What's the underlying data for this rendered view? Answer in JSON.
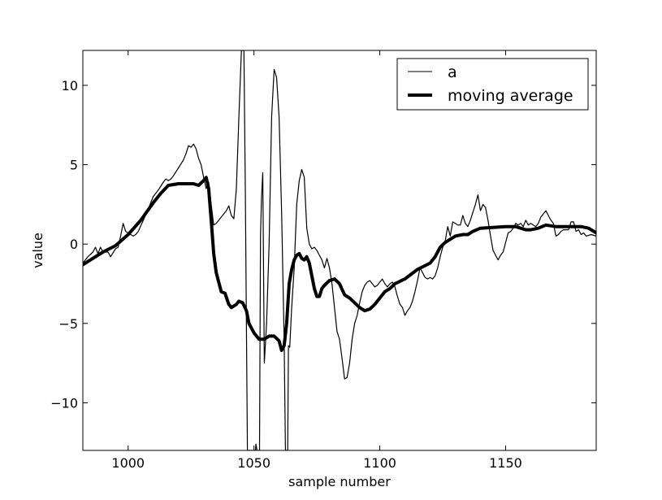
{
  "chart_data": {
    "type": "line",
    "title": "",
    "xlabel": "sample number",
    "ylabel": "value",
    "xlim": [
      982,
      1186
    ],
    "ylim": [
      -13,
      12.2
    ],
    "x_ticks": [
      1000,
      1050,
      1100,
      1150
    ],
    "x_tick_labels": [
      "1000",
      "1050",
      "1100",
      "1150"
    ],
    "y_ticks": [
      10,
      5,
      0,
      -5,
      -10
    ],
    "y_tick_labels": [
      "10",
      "5",
      "0",
      "−5",
      "−10"
    ],
    "grid": false,
    "legend_position": "top-right",
    "series": [
      {
        "name": "a",
        "color": "#000000",
        "style": "thin",
        "points": [
          [
            982,
            -1.2
          ],
          [
            984,
            -0.8
          ],
          [
            986,
            -0.5
          ],
          [
            987,
            -0.2
          ],
          [
            988,
            -0.6
          ],
          [
            989,
            -0.2
          ],
          [
            990,
            -0.5
          ],
          [
            992,
            -0.5
          ],
          [
            993,
            -0.8
          ],
          [
            995,
            -0.3
          ],
          [
            996,
            -0.2
          ],
          [
            997,
            0.5
          ],
          [
            998,
            1.3
          ],
          [
            999,
            0.8
          ],
          [
            1000,
            0.7
          ],
          [
            1001,
            0.6
          ],
          [
            1002,
            0.5
          ],
          [
            1003,
            0.6
          ],
          [
            1004,
            0.8
          ],
          [
            1006,
            1.5
          ],
          [
            1008,
            2.2
          ],
          [
            1010,
            3.0
          ],
          [
            1012,
            3.4
          ],
          [
            1014,
            3.9
          ],
          [
            1015,
            4.1
          ],
          [
            1016,
            4.0
          ],
          [
            1017,
            4.1
          ],
          [
            1018,
            4.3
          ],
          [
            1020,
            4.8
          ],
          [
            1022,
            5.3
          ],
          [
            1023,
            5.7
          ],
          [
            1024,
            6.2
          ],
          [
            1025,
            6.1
          ],
          [
            1026,
            6.3
          ],
          [
            1027,
            6.0
          ],
          [
            1028,
            5.4
          ],
          [
            1029,
            5.0
          ],
          [
            1030,
            4.2
          ],
          [
            1031,
            3.5
          ],
          [
            1032,
            3.9
          ],
          [
            1033,
            2.5
          ],
          [
            1034,
            1.2
          ],
          [
            1035,
            1.3
          ],
          [
            1036,
            1.5
          ],
          [
            1037,
            1.7
          ],
          [
            1038,
            1.9
          ],
          [
            1039,
            2.1
          ],
          [
            1040,
            2.4
          ],
          [
            1041,
            1.8
          ],
          [
            1042,
            1.6
          ],
          [
            1043,
            3.5
          ],
          [
            1044,
            8.0
          ],
          [
            1045,
            12.2
          ],
          [
            1046,
            12.2
          ],
          [
            1046.6,
            3.0
          ],
          [
            1047.4,
            -13.0
          ],
          [
            1050.6,
            -13.0
          ],
          [
            1050.8,
            -12.6
          ],
          [
            1051.2,
            -13.0
          ],
          [
            1052.2,
            -13.0
          ],
          [
            1052.6,
            0.5
          ],
          [
            1053,
            3.0
          ],
          [
            1053.5,
            4.5
          ],
          [
            1054.1,
            -7.5
          ],
          [
            1055,
            -5.0
          ],
          [
            1056,
            0.0
          ],
          [
            1057,
            8.0
          ],
          [
            1058,
            11.0
          ],
          [
            1059,
            10.5
          ],
          [
            1060,
            8.0
          ],
          [
            1061,
            2.0
          ],
          [
            1062,
            -6.0
          ],
          [
            1062.5,
            -13.0
          ],
          [
            1063.4,
            -13.0
          ],
          [
            1063.7,
            -6.4
          ],
          [
            1064.2,
            -6.5
          ],
          [
            1065,
            -4.0
          ],
          [
            1066,
            -1.5
          ],
          [
            1067,
            2.5
          ],
          [
            1068,
            4.0
          ],
          [
            1069,
            4.7
          ],
          [
            1070,
            4.2
          ],
          [
            1071,
            1.0
          ],
          [
            1072,
            0.0
          ],
          [
            1073,
            -0.3
          ],
          [
            1074,
            -0.2
          ],
          [
            1075,
            -0.4
          ],
          [
            1076,
            -0.7
          ],
          [
            1077,
            -1.0
          ],
          [
            1078,
            -1.5
          ],
          [
            1079,
            -0.9
          ],
          [
            1080,
            -1.5
          ],
          [
            1081,
            -2.5
          ],
          [
            1082,
            -4.0
          ],
          [
            1083,
            -5.5
          ],
          [
            1084,
            -6.0
          ],
          [
            1085,
            -7.2
          ],
          [
            1086,
            -8.5
          ],
          [
            1087,
            -8.4
          ],
          [
            1088,
            -7.5
          ],
          [
            1089,
            -6.0
          ],
          [
            1090,
            -5.0
          ],
          [
            1091,
            -4.5
          ],
          [
            1092,
            -3.7
          ],
          [
            1093,
            -3.0
          ],
          [
            1094,
            -2.6
          ],
          [
            1095,
            -2.4
          ],
          [
            1096,
            -2.3
          ],
          [
            1097,
            -2.5
          ],
          [
            1098,
            -2.7
          ],
          [
            1099,
            -2.6
          ],
          [
            1100,
            -2.4
          ],
          [
            1101,
            -2.2
          ],
          [
            1102,
            -2.5
          ],
          [
            1103,
            -2.7
          ],
          [
            1104,
            -2.5
          ],
          [
            1105,
            -2.4
          ],
          [
            1106,
            -2.7
          ],
          [
            1107,
            -3.3
          ],
          [
            1108,
            -3.8
          ],
          [
            1109,
            -4.0
          ],
          [
            1110,
            -4.5
          ],
          [
            1111,
            -4.2
          ],
          [
            1112,
            -4.0
          ],
          [
            1113,
            -3.6
          ],
          [
            1114,
            -3.0
          ],
          [
            1115,
            -2.3
          ],
          [
            1116,
            -1.5
          ],
          [
            1117,
            -1.8
          ],
          [
            1118,
            -2.1
          ],
          [
            1119,
            -2.2
          ],
          [
            1120,
            -2.1
          ],
          [
            1121,
            -2.2
          ],
          [
            1122,
            -2.0
          ],
          [
            1123,
            -1.5
          ],
          [
            1124,
            -0.8
          ],
          [
            1125,
            -0.2
          ],
          [
            1126,
            0.2
          ],
          [
            1127,
            1.1
          ],
          [
            1128,
            0.5
          ],
          [
            1129,
            1.4
          ],
          [
            1130,
            1.3
          ],
          [
            1131,
            1.2
          ],
          [
            1132,
            1.2
          ],
          [
            1133,
            1.8
          ],
          [
            1134,
            1.3
          ],
          [
            1135,
            1.1
          ],
          [
            1136,
            1.5
          ],
          [
            1137,
            2.0
          ],
          [
            1138,
            2.5
          ],
          [
            1139,
            3.1
          ],
          [
            1140,
            2.1
          ],
          [
            1141,
            2.5
          ],
          [
            1142,
            2.3
          ],
          [
            1143,
            1.5
          ],
          [
            1144,
            0.5
          ],
          [
            1145,
            -0.4
          ],
          [
            1146,
            -0.7
          ],
          [
            1147,
            -1.0
          ],
          [
            1148,
            -0.7
          ],
          [
            1149,
            -0.5
          ],
          [
            1150,
            0.1
          ],
          [
            1151,
            0.7
          ],
          [
            1152,
            0.8
          ],
          [
            1153,
            1.0
          ],
          [
            1154,
            1.3
          ],
          [
            1155,
            1.2
          ],
          [
            1156,
            1.3
          ],
          [
            1157,
            1.1
          ],
          [
            1158,
            1.5
          ],
          [
            1159,
            1.2
          ],
          [
            1160,
            1.3
          ],
          [
            1161,
            1.2
          ],
          [
            1162,
            1.1
          ],
          [
            1163,
            1.3
          ],
          [
            1164,
            1.7
          ],
          [
            1165,
            1.9
          ],
          [
            1166,
            2.1
          ],
          [
            1167,
            1.8
          ],
          [
            1168,
            1.5
          ],
          [
            1169,
            1.3
          ],
          [
            1170,
            0.5
          ],
          [
            1171,
            0.6
          ],
          [
            1172,
            0.8
          ],
          [
            1173,
            0.9
          ],
          [
            1174,
            0.9
          ],
          [
            1175,
            0.9
          ],
          [
            1176,
            1.4
          ],
          [
            1177,
            1.4
          ],
          [
            1178,
            0.8
          ],
          [
            1179,
            0.9
          ],
          [
            1180,
            0.6
          ],
          [
            1181,
            0.7
          ],
          [
            1182,
            0.5
          ],
          [
            1184,
            0.6
          ],
          [
            1186,
            0.5
          ]
        ]
      },
      {
        "name": "moving average",
        "color": "#000000",
        "style": "thick",
        "points": [
          [
            982,
            -1.3
          ],
          [
            985,
            -1.0
          ],
          [
            990,
            -0.5
          ],
          [
            995,
            -0.1
          ],
          [
            1000,
            0.6
          ],
          [
            1005,
            1.5
          ],
          [
            1010,
            2.6
          ],
          [
            1013,
            3.2
          ],
          [
            1016,
            3.7
          ],
          [
            1020,
            3.8
          ],
          [
            1024,
            3.8
          ],
          [
            1026,
            3.8
          ],
          [
            1028,
            3.7
          ],
          [
            1030,
            4.0
          ],
          [
            1031,
            4.2
          ],
          [
            1032,
            3.5
          ],
          [
            1033,
            1.5
          ],
          [
            1034,
            -0.6
          ],
          [
            1035,
            -1.8
          ],
          [
            1037,
            -3.0
          ],
          [
            1038.5,
            -3.1
          ],
          [
            1040,
            -3.8
          ],
          [
            1041,
            -4.0
          ],
          [
            1043,
            -3.8
          ],
          [
            1044,
            -3.6
          ],
          [
            1045.5,
            -3.7
          ],
          [
            1047,
            -4.2
          ],
          [
            1048,
            -5.0
          ],
          [
            1050,
            -5.6
          ],
          [
            1052,
            -6.0
          ],
          [
            1054,
            -6.0
          ],
          [
            1056,
            -5.8
          ],
          [
            1058,
            -5.8
          ],
          [
            1060,
            -6.1
          ],
          [
            1061,
            -6.7
          ],
          [
            1062,
            -6.4
          ],
          [
            1063,
            -5.0
          ],
          [
            1064,
            -2.5
          ],
          [
            1065,
            -1.6
          ],
          [
            1066,
            -1.0
          ],
          [
            1067,
            -0.7
          ],
          [
            1068,
            -0.6
          ],
          [
            1069,
            -0.9
          ],
          [
            1070,
            -1.0
          ],
          [
            1071,
            -0.8
          ],
          [
            1072,
            -1.2
          ],
          [
            1073,
            -2.0
          ],
          [
            1074,
            -2.8
          ],
          [
            1075,
            -3.3
          ],
          [
            1076,
            -3.3
          ],
          [
            1077,
            -2.8
          ],
          [
            1078,
            -2.6
          ],
          [
            1080,
            -2.3
          ],
          [
            1082,
            -2.2
          ],
          [
            1084,
            -2.5
          ],
          [
            1086,
            -3.2
          ],
          [
            1088,
            -3.4
          ],
          [
            1090,
            -3.7
          ],
          [
            1092,
            -4.0
          ],
          [
            1094,
            -4.2
          ],
          [
            1096,
            -4.1
          ],
          [
            1098,
            -3.8
          ],
          [
            1100,
            -3.4
          ],
          [
            1102,
            -3.0
          ],
          [
            1104,
            -2.8
          ],
          [
            1106,
            -2.5
          ],
          [
            1110,
            -2.2
          ],
          [
            1115,
            -1.6
          ],
          [
            1120,
            -1.2
          ],
          [
            1122,
            -0.8
          ],
          [
            1124,
            -0.2
          ],
          [
            1126,
            0.1
          ],
          [
            1128,
            0.3
          ],
          [
            1130,
            0.5
          ],
          [
            1133,
            0.6
          ],
          [
            1135,
            0.6
          ],
          [
            1137,
            0.8
          ],
          [
            1140,
            1.0
          ],
          [
            1145,
            1.05
          ],
          [
            1150,
            1.1
          ],
          [
            1154,
            1.1
          ],
          [
            1156,
            1.0
          ],
          [
            1158,
            0.9
          ],
          [
            1160,
            0.9
          ],
          [
            1163,
            1.0
          ],
          [
            1166,
            1.2
          ],
          [
            1170,
            1.1
          ],
          [
            1175,
            1.1
          ],
          [
            1180,
            1.1
          ],
          [
            1183,
            1.0
          ],
          [
            1186,
            0.7
          ]
        ]
      }
    ]
  }
}
